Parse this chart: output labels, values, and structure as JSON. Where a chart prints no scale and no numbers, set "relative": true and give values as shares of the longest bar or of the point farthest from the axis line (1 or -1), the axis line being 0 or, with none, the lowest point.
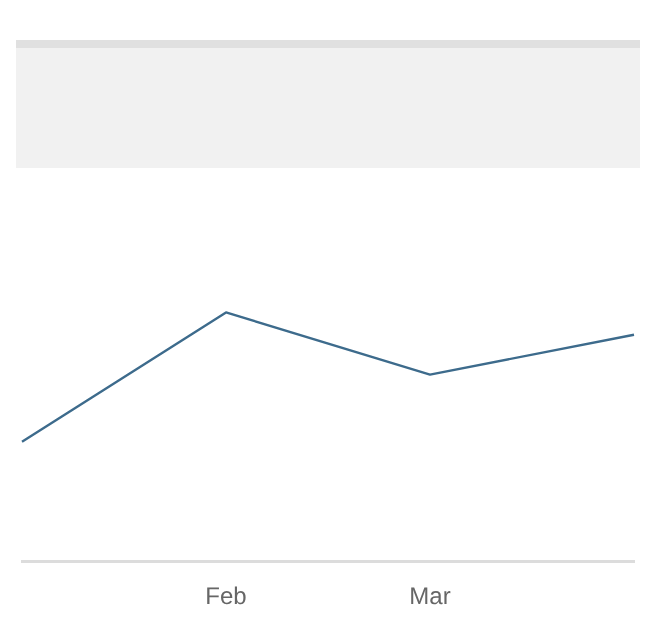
{
  "chart_data": {
    "type": "line",
    "relative": true,
    "categories": [
      null,
      "Feb",
      "Mar",
      null
    ],
    "series": [
      {
        "color": "#3d6b8c",
        "values": [
          0.48,
          1,
          0.75,
          0.91
        ]
      }
    ],
    "legend": false,
    "marker": "none"
  }
}
